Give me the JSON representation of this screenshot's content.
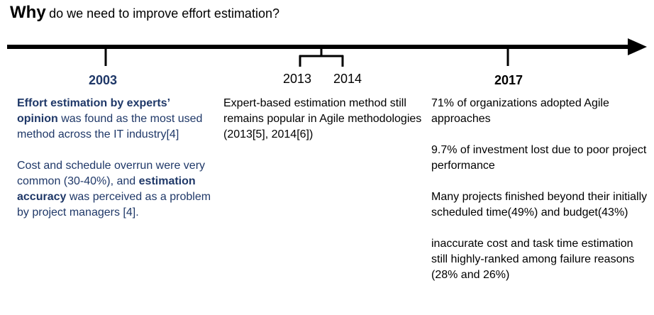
{
  "title": {
    "bold": "Why",
    "rest": "do we need to improve effort estimation?"
  },
  "timeline": {
    "years": [
      "2003",
      "2013",
      "2014",
      "2017"
    ]
  },
  "col_2003": {
    "p1_bold": "Effort estimation by experts’ opinion",
    "p1_rest": " was found as the most used method across the IT industry[4]",
    "p2_start": "Cost and schedule overrun were very common (30-40%), and ",
    "p2_bold": "estimation accuracy",
    "p2_rest": " was perceived as a problem by project managers [4]."
  },
  "col_2013": {
    "p1": "Expert-based estimation method still remains popular in Agile methodologies (2013[5], 2014[6])"
  },
  "col_2017": {
    "p1": "71% of organizations adopted Agile approaches",
    "p2": "9.7% of investment lost due to poor project performance",
    "p3": "Many projects finished beyond their initially scheduled time(49%) and budget(43%)",
    "p4": "inaccurate cost and task time estimation still highly-ranked among failure reasons (28% and 26%)"
  },
  "colors": {
    "text_blue": "#1f3868",
    "line": "#000000"
  }
}
